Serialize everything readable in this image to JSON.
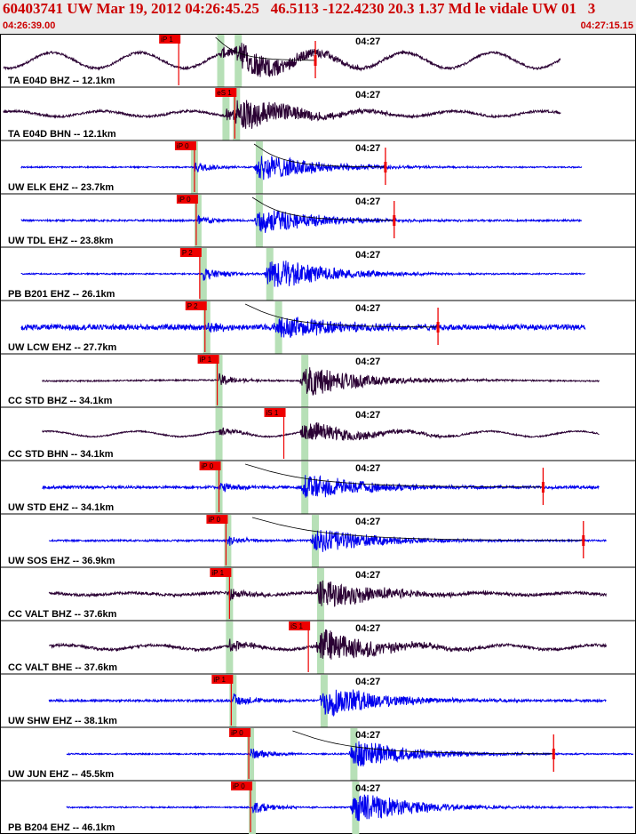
{
  "header": {
    "title": "60403741 UW Mar 19, 2012 04:26:45.25   46.5113 -122.4230 20.3 1.37 Md le vidale UW 01   3",
    "start_time": "04:26:39.00",
    "end_time": "04:27:15.15"
  },
  "colors": {
    "header_bg": "#ebebeb",
    "header_text": "#cc0000",
    "trace_dark": "#2a0033",
    "trace_blue": "#0000ee",
    "pick": "#ee0000",
    "pick_window": "#b7e0b7",
    "fit_curve": "#000000"
  },
  "chart_data": {
    "type": "line",
    "x_unit": "seconds after 04:26:39.00",
    "xlim": [
      0,
      36.15
    ],
    "minute_marker": {
      "label": "04:27",
      "t": 21.0
    },
    "traces": [
      {
        "label": "TA E04D BHZ -- 12.1km",
        "color": "dark",
        "pick": "iP 1",
        "pick_t": 10.2,
        "onset_t": 12.6,
        "s_t": 13.6,
        "amp": 0.8,
        "bg": 0.35,
        "noise": 0.05,
        "lp": 1,
        "t_start": 0.2,
        "t_end": 32.0
      },
      {
        "label": "TA E04D BHN -- 12.1km",
        "color": "dark",
        "pick": "eS 1",
        "pick_t": 13.4,
        "onset_t": 12.9,
        "s_t": 13.5,
        "amp": 0.9,
        "bg": 0.12,
        "noise": 0.05,
        "lp": 1,
        "t_start": 0.2,
        "t_end": 32.0
      },
      {
        "label": "UW ELK EHZ -- 23.7km",
        "color": "blue",
        "pick": "iP 0",
        "pick_t": 11.1,
        "onset_t": 11.1,
        "s_t": 14.8,
        "amp": 0.75,
        "bg": 0.0,
        "noise": 0.03,
        "lp": 0,
        "t_start": 1.2,
        "t_end": 33.2
      },
      {
        "label": "UW TDL EHZ -- 23.8km",
        "color": "blue",
        "pick": "iP 0",
        "pick_t": 11.2,
        "onset_t": 11.3,
        "s_t": 14.8,
        "amp": 0.7,
        "bg": 0.0,
        "noise": 0.04,
        "lp": 0,
        "t_start": 1.2,
        "t_end": 33.2
      },
      {
        "label": "PB B201 EHZ -- 26.1km",
        "color": "blue",
        "pick": "P 2",
        "pick_t": 11.4,
        "onset_t": 11.6,
        "s_t": 15.4,
        "amp": 0.9,
        "bg": 0.0,
        "noise": 0.03,
        "lp": 0,
        "t_start": 1.2,
        "t_end": 33.4
      },
      {
        "label": "UW LCW EHZ -- 27.7km",
        "color": "blue",
        "pick": "P 2",
        "pick_t": 11.7,
        "onset_t": 11.8,
        "s_t": 15.9,
        "amp": 0.6,
        "bg": 0.0,
        "noise": 0.12,
        "lp": 0,
        "t_start": 1.2,
        "t_end": 33.4
      },
      {
        "label": "CC STD BHZ -- 34.1km",
        "color": "dark",
        "pick": "iP 1",
        "pick_t": 12.4,
        "onset_t": 12.5,
        "s_t": 17.4,
        "amp": 0.85,
        "bg": 0.02,
        "noise": 0.03,
        "lp": 0,
        "t_start": 2.4,
        "t_end": 34.2
      },
      {
        "label": "CC STD BHN -- 34.1km",
        "color": "dark",
        "pick": "iS 1",
        "pick_t": 16.2,
        "onset_t": 12.5,
        "s_t": 17.4,
        "amp": 0.55,
        "bg": 0.12,
        "noise": 0.03,
        "lp": 1,
        "t_start": 2.4,
        "t_end": 34.2
      },
      {
        "label": "UW STD EHZ -- 34.1km",
        "color": "blue",
        "pick": "iP 0",
        "pick_t": 12.5,
        "onset_t": 12.5,
        "s_t": 17.4,
        "amp": 0.75,
        "bg": 0.0,
        "noise": 0.06,
        "lp": 0,
        "t_start": 2.4,
        "t_end": 34.2
      },
      {
        "label": "UW SOS EHZ -- 36.9km",
        "color": "blue",
        "pick": "iP 0",
        "pick_t": 12.9,
        "onset_t": 13.0,
        "s_t": 18.0,
        "amp": 0.7,
        "bg": 0.0,
        "noise": 0.04,
        "lp": 0,
        "t_start": 2.8,
        "t_end": 34.6
      },
      {
        "label": "CC VALT BHZ -- 37.6km",
        "color": "dark",
        "pick": "iP 1",
        "pick_t": 13.1,
        "onset_t": 13.1,
        "s_t": 18.3,
        "amp": 0.85,
        "bg": 0.05,
        "noise": 0.06,
        "lp": 1,
        "t_start": 2.8,
        "t_end": 34.6
      },
      {
        "label": "CC VALT BHE -- 37.6km",
        "color": "dark",
        "pick": "iS 1",
        "pick_t": 17.6,
        "onset_t": 13.1,
        "s_t": 18.3,
        "amp": 0.9,
        "bg": 0.1,
        "noise": 0.06,
        "lp": 1,
        "t_start": 2.8,
        "t_end": 34.6
      },
      {
        "label": "UW SHW EHZ -- 38.1km",
        "color": "blue",
        "pick": "iP 1",
        "pick_t": 13.2,
        "onset_t": 13.3,
        "s_t": 18.5,
        "amp": 0.9,
        "bg": 0.0,
        "noise": 0.05,
        "lp": 0,
        "t_start": 2.8,
        "t_end": 34.6
      },
      {
        "label": "UW JUN EHZ -- 45.5km",
        "color": "blue",
        "pick": "iP 0",
        "pick_t": 14.2,
        "onset_t": 14.3,
        "s_t": 20.2,
        "amp": 0.8,
        "bg": 0.0,
        "noise": 0.03,
        "lp": 0,
        "t_start": 3.8,
        "t_end": 36.15
      },
      {
        "label": "PB B204 EHZ -- 46.1km",
        "color": "blue",
        "pick": "iP 0",
        "pick_t": 14.3,
        "onset_t": 14.4,
        "s_t": 20.3,
        "amp": 0.85,
        "bg": 0.0,
        "noise": 0.03,
        "lp": 0,
        "t_start": 3.8,
        "t_end": 36.15
      }
    ],
    "extra_marks": [
      {
        "trace": 0,
        "kind": "fit_curve",
        "t": [
          12.3,
          18.0
        ]
      },
      {
        "trace": 0,
        "kind": "spike",
        "t": 18.0
      },
      {
        "trace": 2,
        "kind": "fit_curve",
        "t": [
          14.5,
          22.0
        ]
      },
      {
        "trace": 2,
        "kind": "spike",
        "t": 22.0
      },
      {
        "trace": 3,
        "kind": "fit_curve",
        "t": [
          14.4,
          22.5
        ]
      },
      {
        "trace": 3,
        "kind": "spike",
        "t": 22.5
      },
      {
        "trace": 5,
        "kind": "fit_curve",
        "t": [
          14.0,
          25.0
        ]
      },
      {
        "trace": 5,
        "kind": "spike",
        "t": 25.0
      },
      {
        "trace": 8,
        "kind": "fit_curve",
        "t": [
          14.0,
          31.0
        ]
      },
      {
        "trace": 8,
        "kind": "spike",
        "t": 31.0
      },
      {
        "trace": 9,
        "kind": "fit_curve",
        "t": [
          14.4,
          33.3
        ]
      },
      {
        "trace": 9,
        "kind": "spike",
        "t": 33.3
      },
      {
        "trace": 13,
        "kind": "fit_curve",
        "t": [
          16.7,
          31.6
        ]
      },
      {
        "trace": 13,
        "kind": "spike",
        "t": 31.6
      }
    ]
  }
}
